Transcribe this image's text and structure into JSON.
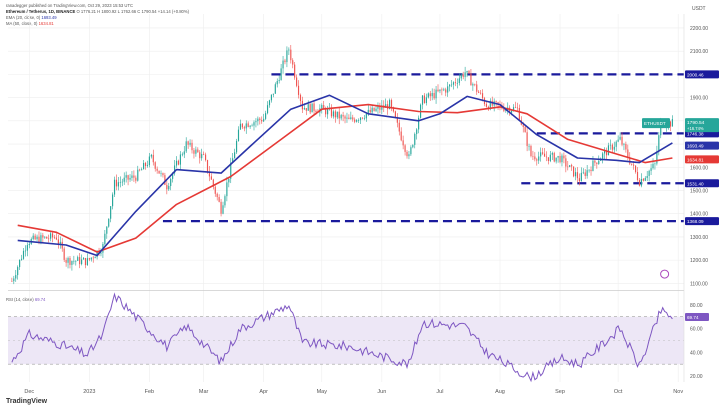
{
  "header": {
    "published": "ranadegger published on TradingView.com, Oct 29, 2023 15:53 UTC",
    "symbol_line": "Ethereum / Tetherus, 1D, BINANCE",
    "ohlc": "O 1776.21 H 1800.92 L 1762.66 C 1790.54 +14.14 (+0.80%)",
    "ema_line": "EMA (20, close, 0)",
    "ema_value": "1693.49",
    "ma_line": "MA (50, close, 0)",
    "ma_value": "1634.81",
    "rsi_line": "RSI (14, close)",
    "rsi_value": "69.74"
  },
  "footer": {
    "logo": "TradingView"
  },
  "colors": {
    "up": "#26a69a",
    "down": "#ef5350",
    "ema20": "#2934a8",
    "sma50": "#e53935",
    "level": "#1a1a9c",
    "rsi": "#7e57c2",
    "rsi_band": "#ede7f6",
    "grid": "#eeeeee"
  },
  "chart_data": {
    "type": "candlestick",
    "title": "",
    "currency": "USDT",
    "xlabel": "",
    "ylabel": "",
    "grid": true,
    "main_ylim": [
      1080,
      2260
    ],
    "yticks": [
      1100,
      1200,
      1300,
      1400,
      1500,
      1600,
      1700,
      1800,
      1900,
      2000,
      2100,
      2200
    ],
    "xticks": [
      "Dec",
      "2023",
      "Feb",
      "Mar",
      "Apr",
      "May",
      "Jun",
      "Jul",
      "Aug",
      "Sep",
      "Oct",
      "Nov"
    ],
    "price_labels": {
      "symbol": "ETHUSDT",
      "last_price": "1790.54",
      "change": "+16.74%",
      "ema20": "1693.49",
      "sma50": "1634.81",
      "level_2000": "2000.46",
      "level_1746": "1746.38",
      "level_1531": "1531.40",
      "level_1368": "1368.09"
    },
    "levels": [
      {
        "value": 2000,
        "start": "2023-04-05",
        "end": "2023-10-29"
      },
      {
        "value": 1746,
        "start": "2023-08-20",
        "end": "2023-10-29"
      },
      {
        "value": 1531,
        "start": "2023-08-12",
        "end": "2023-10-29"
      },
      {
        "value": 1368,
        "start": "2023-02-08",
        "end": "2023-10-29"
      }
    ],
    "ema20_path": [
      [
        "2022-11-25",
        1285
      ],
      [
        "2022-12-20",
        1265
      ],
      [
        "2023-01-05",
        1220
      ],
      [
        "2023-01-25",
        1410
      ],
      [
        "2023-02-15",
        1590
      ],
      [
        "2023-03-10",
        1575
      ],
      [
        "2023-03-25",
        1690
      ],
      [
        "2023-04-15",
        1850
      ],
      [
        "2023-05-05",
        1910
      ],
      [
        "2023-05-25",
        1830
      ],
      [
        "2023-06-20",
        1800
      ],
      [
        "2023-07-01",
        1830
      ],
      [
        "2023-07-15",
        1905
      ],
      [
        "2023-08-01",
        1870
      ],
      [
        "2023-08-20",
        1740
      ],
      [
        "2023-09-10",
        1640
      ],
      [
        "2023-09-30",
        1630
      ],
      [
        "2023-10-12",
        1620
      ],
      [
        "2023-10-29",
        1705
      ]
    ],
    "sma50_path": [
      [
        "2022-11-25",
        1350
      ],
      [
        "2022-12-15",
        1320
      ],
      [
        "2023-01-05",
        1235
      ],
      [
        "2023-01-25",
        1295
      ],
      [
        "2023-02-15",
        1440
      ],
      [
        "2023-03-15",
        1560
      ],
      [
        "2023-04-10",
        1720
      ],
      [
        "2023-05-01",
        1850
      ],
      [
        "2023-05-25",
        1870
      ],
      [
        "2023-06-20",
        1840
      ],
      [
        "2023-07-10",
        1835
      ],
      [
        "2023-08-01",
        1860
      ],
      [
        "2023-08-15",
        1830
      ],
      [
        "2023-09-05",
        1720
      ],
      [
        "2023-09-25",
        1670
      ],
      [
        "2023-10-15",
        1620
      ],
      [
        "2023-10-29",
        1640
      ]
    ],
    "price_path": [
      [
        "2022-11-22",
        1110
      ],
      [
        "2022-11-30",
        1280
      ],
      [
        "2022-12-05",
        1290
      ],
      [
        "2022-12-15",
        1300
      ],
      [
        "2022-12-20",
        1200
      ],
      [
        "2022-12-31",
        1195
      ],
      [
        "2023-01-08",
        1260
      ],
      [
        "2023-01-14",
        1530
      ],
      [
        "2023-01-25",
        1560
      ],
      [
        "2023-02-02",
        1640
      ],
      [
        "2023-02-10",
        1520
      ],
      [
        "2023-02-20",
        1700
      ],
      [
        "2023-03-01",
        1640
      ],
      [
        "2023-03-10",
        1420
      ],
      [
        "2023-03-20",
        1780
      ],
      [
        "2023-04-01",
        1810
      ],
      [
        "2023-04-14",
        2110
      ],
      [
        "2023-04-21",
        1860
      ],
      [
        "2023-05-01",
        1850
      ],
      [
        "2023-05-15",
        1800
      ],
      [
        "2023-06-05",
        1870
      ],
      [
        "2023-06-15",
        1640
      ],
      [
        "2023-06-22",
        1890
      ],
      [
        "2023-07-05",
        1940
      ],
      [
        "2023-07-14",
        2010
      ],
      [
        "2023-07-25",
        1870
      ],
      [
        "2023-08-10",
        1850
      ],
      [
        "2023-08-17",
        1650
      ],
      [
        "2023-09-01",
        1640
      ],
      [
        "2023-09-11",
        1550
      ],
      [
        "2023-09-20",
        1630
      ],
      [
        "2023-10-02",
        1720
      ],
      [
        "2023-10-12",
        1540
      ],
      [
        "2023-10-20",
        1610
      ],
      [
        "2023-10-23",
        1790
      ],
      [
        "2023-10-29",
        1790
      ]
    ],
    "rsi": {
      "ylim": [
        15,
        90
      ],
      "yticks": [
        20,
        40,
        60,
        80
      ],
      "band": [
        30,
        70
      ],
      "midline": 50,
      "path": [
        [
          "2022-11-22",
          32
        ],
        [
          "2022-12-01",
          55
        ],
        [
          "2022-12-15",
          48
        ],
        [
          "2022-12-31",
          38
        ],
        [
          "2023-01-08",
          55
        ],
        [
          "2023-01-14",
          88
        ],
        [
          "2023-01-25",
          70
        ],
        [
          "2023-02-10",
          45
        ],
        [
          "2023-02-20",
          62
        ],
        [
          "2023-03-10",
          32
        ],
        [
          "2023-03-20",
          60
        ],
        [
          "2023-04-14",
          80
        ],
        [
          "2023-04-21",
          48
        ],
        [
          "2023-05-15",
          45
        ],
        [
          "2023-06-15",
          30
        ],
        [
          "2023-06-22",
          65
        ],
        [
          "2023-07-14",
          62
        ],
        [
          "2023-07-25",
          40
        ],
        [
          "2023-08-17",
          18
        ],
        [
          "2023-09-01",
          35
        ],
        [
          "2023-09-11",
          30
        ],
        [
          "2023-10-02",
          60
        ],
        [
          "2023-10-12",
          28
        ],
        [
          "2023-10-23",
          75
        ],
        [
          "2023-10-29",
          69.74
        ]
      ]
    }
  }
}
